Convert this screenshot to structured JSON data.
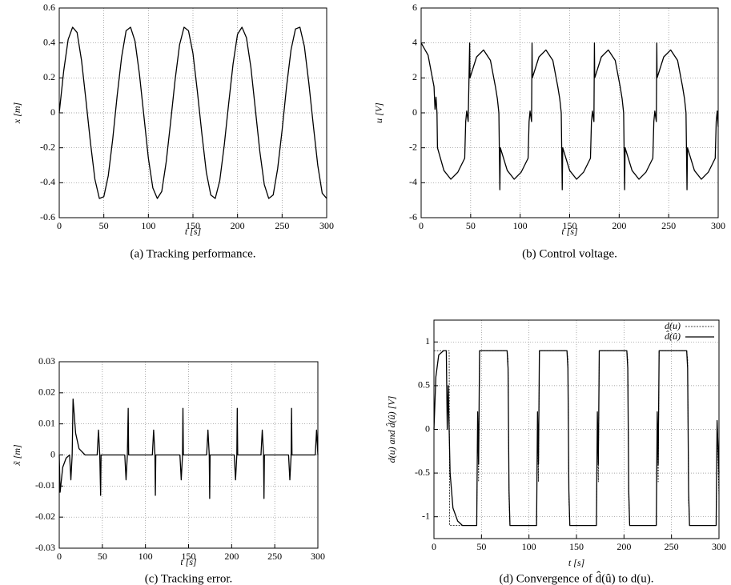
{
  "chart_data": [
    {
      "type": "line",
      "ylabel": "x [m]",
      "xlabel": "t [s]",
      "caption": "(a)  Tracking performance.",
      "xlim": [
        0,
        300
      ],
      "xticks": [
        0,
        50,
        100,
        150,
        200,
        250,
        300
      ],
      "ylim": [
        -0.6,
        0.6
      ],
      "yticks": [
        -0.6,
        -0.4,
        -0.2,
        0,
        0.2,
        0.4,
        0.6
      ],
      "grid": true,
      "x": [
        0,
        5,
        10,
        15,
        20,
        25,
        30,
        35,
        40,
        45,
        50,
        55,
        60,
        65,
        70,
        75,
        80,
        85,
        90,
        95,
        100,
        105,
        110,
        115,
        120,
        125,
        130,
        135,
        140,
        145,
        150,
        155,
        160,
        165,
        170,
        175,
        180,
        185,
        190,
        195,
        200,
        205,
        210,
        215,
        220,
        225,
        230,
        235,
        240,
        245,
        250,
        255,
        260,
        265,
        270,
        275,
        280,
        285,
        290,
        295,
        300
      ],
      "series": [
        {
          "color": "#000000",
          "style": "solid",
          "values": [
            0,
            0.24,
            0.42,
            0.49,
            0.46,
            0.3,
            0.07,
            -0.17,
            -0.38,
            -0.49,
            -0.48,
            -0.36,
            -0.15,
            0.1,
            0.32,
            0.47,
            0.49,
            0.41,
            0.22,
            -0.02,
            -0.26,
            -0.43,
            -0.49,
            -0.45,
            -0.28,
            -0.05,
            0.19,
            0.39,
            0.49,
            0.47,
            0.34,
            0.12,
            -0.12,
            -0.34,
            -0.47,
            -0.49,
            -0.39,
            -0.19,
            0.05,
            0.28,
            0.45,
            0.49,
            0.43,
            0.26,
            0.02,
            -0.22,
            -0.41,
            -0.49,
            -0.47,
            -0.32,
            -0.1,
            0.15,
            0.36,
            0.48,
            0.49,
            0.38,
            0.17,
            -0.07,
            -0.3,
            -0.46,
            -0.49
          ]
        }
      ]
    },
    {
      "type": "line",
      "ylabel": "u [V]",
      "xlabel": "t [s]",
      "caption": "(b)  Control voltage.",
      "xlim": [
        0,
        300
      ],
      "xticks": [
        0,
        50,
        100,
        150,
        200,
        250,
        300
      ],
      "ylim": [
        -6,
        6
      ],
      "yticks": [
        -6,
        -4,
        -2,
        0,
        2,
        4,
        6
      ],
      "grid": true,
      "x": [
        0,
        7,
        13,
        14,
        15,
        16,
        16.5,
        23,
        30,
        37,
        44,
        45,
        46,
        47.5,
        49,
        49.3,
        56,
        63,
        70,
        75,
        77,
        78.5,
        79.5,
        80,
        87,
        94,
        101,
        108,
        109,
        110,
        111.5,
        112,
        112.3,
        119,
        126,
        133,
        138,
        140,
        141.5,
        142.5,
        143,
        150,
        157,
        164,
        171,
        172,
        173,
        174.5,
        175,
        175.3,
        182,
        189,
        196,
        201,
        203,
        204.5,
        205.5,
        206,
        213,
        220,
        227,
        234,
        235,
        236,
        237.5,
        238,
        238.3,
        245,
        252,
        259,
        264,
        266,
        267.5,
        268.5,
        269,
        276,
        283,
        290,
        297,
        298,
        299,
        300
      ],
      "series": [
        {
          "color": "#000000",
          "style": "solid",
          "values": [
            4,
            3.3,
            1.5,
            0.2,
            0.9,
            0,
            -2,
            -3.3,
            -3.8,
            -3.4,
            -2.6,
            -0.5,
            0.1,
            -0.5,
            4,
            2,
            3.2,
            3.6,
            3,
            1.5,
            0.8,
            0,
            -4.4,
            -2,
            -3.3,
            -3.8,
            -3.4,
            -2.6,
            -0.5,
            0.1,
            -0.5,
            4,
            2,
            3.2,
            3.6,
            3,
            1.5,
            0.8,
            0,
            -4.4,
            -2,
            -3.3,
            -3.8,
            -3.4,
            -2.6,
            -0.5,
            0.1,
            -0.5,
            4,
            2,
            3.2,
            3.6,
            3,
            1.5,
            0.8,
            0,
            -4.4,
            -2,
            -3.3,
            -3.8,
            -3.4,
            -2.6,
            -0.5,
            0.1,
            -0.5,
            4,
            2,
            3.2,
            3.6,
            3,
            1.5,
            0.8,
            0,
            -4.4,
            -2,
            -3.3,
            -3.8,
            -3.4,
            -2.6,
            -0.5,
            0.1,
            -0.8
          ]
        }
      ]
    },
    {
      "type": "line",
      "ylabel": "x̃ [m]",
      "xlabel": "t [s]",
      "caption": "(c)  Tracking error.",
      "xlim": [
        0,
        300
      ],
      "xticks": [
        0,
        50,
        100,
        150,
        200,
        250,
        300
      ],
      "ylim": [
        -0.03,
        0.03
      ],
      "yticks": [
        -0.03,
        -0.02,
        -0.01,
        0,
        0.01,
        0.02,
        0.03
      ],
      "grid": true,
      "x": [
        0,
        1,
        4,
        8,
        12,
        13.5,
        15,
        16,
        19,
        23,
        30,
        44,
        45.5,
        47,
        48,
        48.5,
        76,
        77.5,
        79,
        80,
        80.5,
        108,
        109.5,
        111,
        111.5,
        112,
        140,
        141.5,
        143,
        143.5,
        144,
        171,
        172.5,
        174,
        174.5,
        175,
        203,
        204.5,
        206,
        206.5,
        207,
        234,
        235.5,
        237,
        237.5,
        238,
        266,
        267.5,
        269,
        269.5,
        270,
        297,
        298.5,
        300
      ],
      "series": [
        {
          "color": "#000000",
          "style": "solid",
          "values": [
            0,
            -0.012,
            -0.004,
            -0.001,
            0,
            -0.008,
            0,
            0.018,
            0.007,
            0.002,
            0,
            0,
            0.008,
            0,
            -0.013,
            0,
            0,
            -0.008,
            0,
            0.015,
            0,
            0,
            0.008,
            0,
            -0.013,
            0,
            0,
            -0.008,
            0,
            0.015,
            0,
            0,
            0.008,
            0,
            -0.014,
            0,
            0,
            -0.008,
            0,
            0.015,
            0,
            0,
            0.008,
            0,
            -0.014,
            0,
            0,
            -0.008,
            0,
            0.015,
            0,
            0,
            0.008,
            0
          ]
        }
      ]
    },
    {
      "type": "line",
      "ylabel": "d(u) and d̂(û) [V]",
      "xlabel": "t [s]",
      "caption": "(d)  Convergence of d̂(û) to d(u).",
      "xlim": [
        0,
        300
      ],
      "xticks": [
        0,
        50,
        100,
        150,
        200,
        250,
        300
      ],
      "ylim": [
        -1.25,
        1.25
      ],
      "yticks": [
        -1,
        -0.5,
        0,
        0.5,
        1
      ],
      "grid": true,
      "legend": "top-right",
      "series": [
        {
          "name": "d(u)",
          "color": "#000000",
          "style": "dashed",
          "x": [
            0,
            16,
            16.5,
            45,
            46,
            47,
            48,
            77,
            78,
            79,
            80,
            108,
            109,
            110,
            111,
            140,
            141,
            142,
            143,
            171,
            172,
            173,
            174,
            203,
            204,
            205,
            206,
            234,
            235,
            236,
            237,
            266,
            267,
            268,
            269,
            297,
            298,
            300
          ],
          "values": [
            0.9,
            0.9,
            -1.1,
            -1.1,
            0.1,
            -0.6,
            0.9,
            0.9,
            0.8,
            -0.8,
            -1.1,
            -1.1,
            0.1,
            -0.6,
            0.9,
            0.9,
            0.8,
            -0.8,
            -1.1,
            -1.1,
            0.1,
            -0.6,
            0.9,
            0.9,
            0.8,
            -0.8,
            -1.1,
            -1.1,
            0.1,
            -0.6,
            0.9,
            0.9,
            0.8,
            -0.8,
            -1.1,
            -1.1,
            0.1,
            -0.8
          ]
        },
        {
          "name": "d̂(û)",
          "color": "#000000",
          "style": "solid",
          "x": [
            0,
            2,
            5,
            10,
            13,
            14,
            15,
            16,
            17,
            20,
            25,
            30,
            45,
            46,
            47,
            48,
            77,
            78,
            79,
            80,
            108,
            109,
            110,
            111,
            140,
            141,
            142,
            143,
            171,
            172,
            173,
            174,
            203,
            204,
            205,
            206,
            234,
            235,
            236,
            237,
            266,
            267,
            268,
            269,
            297,
            298,
            300
          ],
          "values": [
            0,
            0.6,
            0.85,
            0.9,
            0.9,
            0,
            0.5,
            0,
            -0.5,
            -0.9,
            -1.05,
            -1.1,
            -1.1,
            0.2,
            -0.4,
            0.9,
            0.9,
            0.7,
            -0.7,
            -1.1,
            -1.1,
            0.2,
            -0.4,
            0.9,
            0.9,
            0.7,
            -0.7,
            -1.1,
            -1.1,
            0.2,
            -0.4,
            0.9,
            0.9,
            0.7,
            -0.7,
            -1.1,
            -1.1,
            0.2,
            -0.4,
            0.9,
            0.9,
            0.7,
            -0.7,
            -1.1,
            -1.1,
            0.1,
            -0.5
          ]
        }
      ]
    }
  ]
}
